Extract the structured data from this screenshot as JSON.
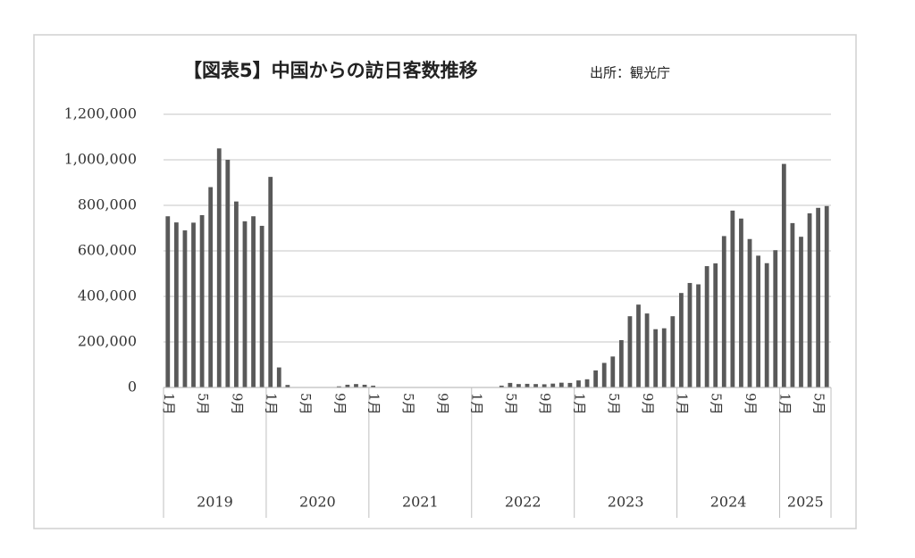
{
  "chart_data": {
    "type": "bar",
    "title": "【図表5】中国からの訪日客数推移",
    "subtitle": "出所：観光庁",
    "color": "#595959",
    "grid": true,
    "ylim": [
      0,
      1200000
    ],
    "yticks": [
      0,
      {
        "value": 200000,
        "label": "200,000"
      },
      {
        "value": 400000,
        "label": "400,000"
      },
      {
        "value": 600000,
        "label": "600,000"
      },
      {
        "value": 800000,
        "label": "800,000"
      },
      {
        "value": 1000000,
        "label": "1,000,000"
      },
      {
        "value": 1200000,
        "label": "1,200,000"
      }
    ],
    "groups": [
      {
        "label": "2019",
        "categories": [
          "1月",
          null,
          null,
          null,
          "5月",
          null,
          null,
          null,
          "9月",
          null,
          null,
          null
        ]
      },
      {
        "label": "2020",
        "categories": [
          "1月",
          null,
          null,
          null,
          "5月",
          null,
          null,
          null,
          "9月",
          null,
          null,
          null
        ]
      },
      {
        "label": "2021",
        "categories": [
          "1月",
          null,
          null,
          null,
          "5月",
          null,
          null,
          null,
          "9月",
          null,
          null,
          null
        ]
      },
      {
        "label": "2022",
        "categories": [
          "1月",
          null,
          null,
          null,
          "5月",
          null,
          null,
          null,
          "9月",
          null,
          null,
          null
        ]
      },
      {
        "label": "2023",
        "categories": [
          "1月",
          null,
          null,
          null,
          "5月",
          null,
          null,
          null,
          "9月",
          null,
          null,
          null
        ]
      },
      {
        "label": "2024",
        "categories": [
          "1月",
          null,
          null,
          null,
          "5月",
          null,
          null,
          null,
          "9月",
          null,
          null,
          null
        ]
      },
      {
        "label": "2025",
        "categories": [
          "1月",
          null,
          null,
          null,
          "5月",
          null
        ]
      }
    ],
    "values": [
      752000,
      725000,
      690000,
      724000,
      757000,
      880000,
      1050000,
      1000000,
      817000,
      730000,
      752000,
      710000,
      925000,
      88000,
      11000,
      200,
      100,
      200,
      300,
      600,
      5000,
      12000,
      15000,
      12000,
      8000,
      1000,
      1000,
      800,
      600,
      700,
      900,
      1000,
      900,
      1000,
      1100,
      1000,
      1000,
      1500,
      1500,
      8000,
      20000,
      15000,
      16000,
      15000,
      14000,
      17000,
      21000,
      20000,
      31000,
      36000,
      75000,
      108000,
      136000,
      208000,
      313000,
      364000,
      325000,
      256000,
      260000,
      313000,
      415000,
      459000,
      453000,
      533000,
      545000,
      665000,
      777000,
      742000,
      652000,
      579000,
      546000,
      603000,
      982000,
      722000,
      662000,
      765000,
      789000,
      797000
    ]
  }
}
